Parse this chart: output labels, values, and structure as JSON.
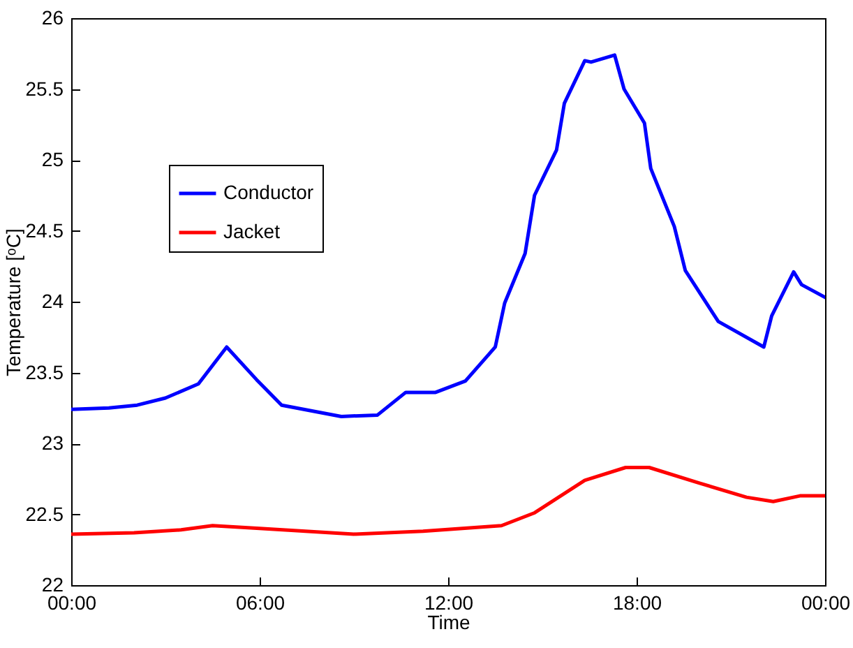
{
  "chart_data": {
    "type": "line",
    "xlabel": "Time",
    "ylabel": "Temperature [ᵒC]",
    "xlim": [
      0,
      24
    ],
    "xticks": [
      {
        "value": 0,
        "label": "00:00"
      },
      {
        "value": 6,
        "label": "06:00"
      },
      {
        "value": 12,
        "label": "12:00"
      },
      {
        "value": 18,
        "label": "18:00"
      },
      {
        "value": 24,
        "label": "00:00"
      }
    ],
    "ylim": [
      22,
      26
    ],
    "yticks": [
      22,
      22.5,
      23,
      23.5,
      24,
      24.5,
      25,
      25.5,
      26
    ],
    "grid": false,
    "legend": "top left",
    "line_style": "solid",
    "marker": "none",
    "series": [
      {
        "name": "Conductor",
        "color": "#0000ff",
        "x": [
          0,
          1.2,
          2.1,
          3.0,
          4.05,
          4.95,
          5.9,
          6.7,
          8.6,
          9.75,
          10.65,
          11.6,
          12.55,
          13.5,
          13.8,
          14.45,
          14.75,
          15.45,
          15.7,
          16.35,
          16.55,
          17.3,
          17.6,
          18.25,
          18.45,
          19.2,
          19.55,
          20.6,
          22.05,
          22.3,
          23.0,
          23.25,
          24
        ],
        "values": [
          23.24,
          23.25,
          23.27,
          23.32,
          23.42,
          23.68,
          23.45,
          23.27,
          23.19,
          23.2,
          23.36,
          23.36,
          23.44,
          23.68,
          23.99,
          24.34,
          24.75,
          25.07,
          25.4,
          25.7,
          25.69,
          25.74,
          25.5,
          25.26,
          24.94,
          24.53,
          24.22,
          23.86,
          23.68,
          23.9,
          24.21,
          24.12,
          24.03
        ]
      },
      {
        "name": "Jacket",
        "color": "#ff0000",
        "x": [
          0,
          2,
          3.5,
          4.5,
          6,
          9,
          11.2,
          13.7,
          14.75,
          16.35,
          17.65,
          18.4,
          20,
          21.5,
          22.35,
          23.2,
          24
        ],
        "values": [
          22.36,
          22.37,
          22.39,
          22.42,
          22.4,
          22.36,
          22.38,
          22.42,
          22.51,
          22.74,
          22.83,
          22.83,
          22.72,
          22.62,
          22.59,
          22.63,
          22.63
        ]
      }
    ]
  }
}
